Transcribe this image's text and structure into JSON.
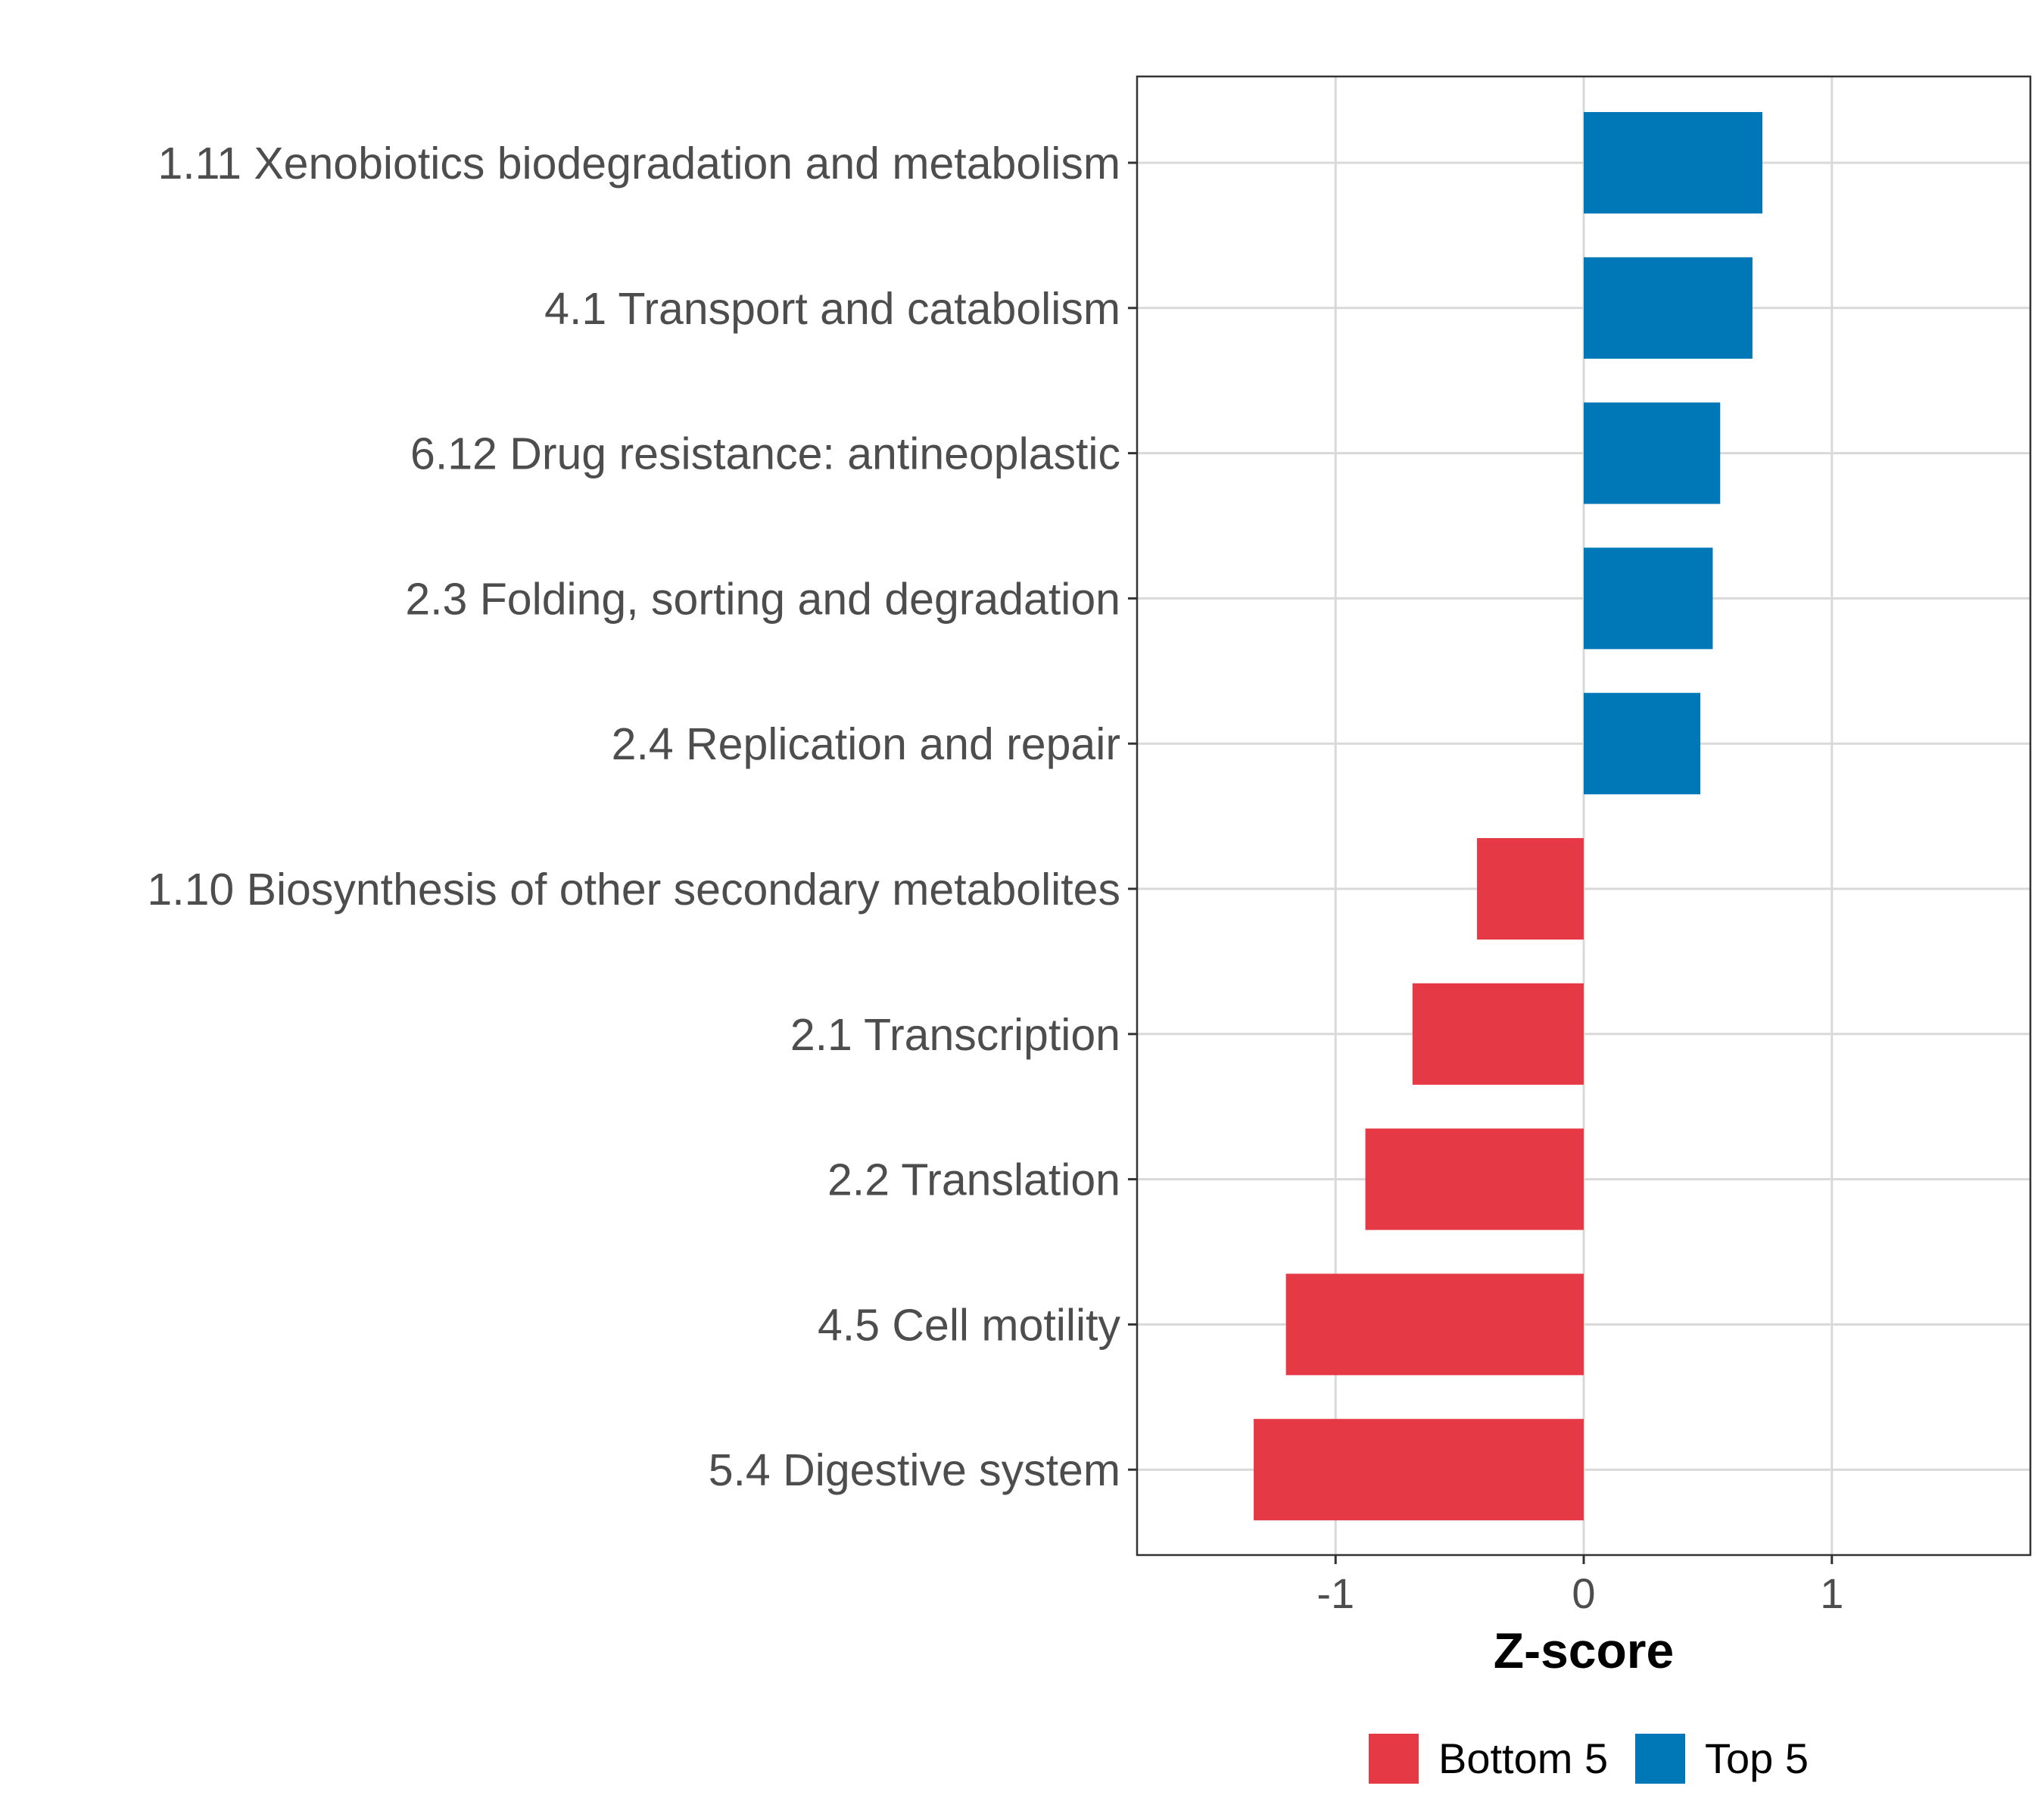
{
  "chart_data": {
    "type": "bar",
    "orientation": "horizontal",
    "categories": [
      "1.11 Xenobiotics biodegradation and metabolism",
      "4.1 Transport and catabolism",
      "6.12 Drug resistance: antineoplastic",
      "2.3 Folding, sorting and degradation",
      "2.4 Replication and repair",
      "1.10 Biosynthesis of other secondary metabolites",
      "2.1 Transcription",
      "2.2 Translation",
      "4.5 Cell motility",
      "5.4 Digestive system"
    ],
    "values": [
      0.72,
      0.68,
      0.55,
      0.52,
      0.47,
      -0.43,
      -0.69,
      -0.88,
      -1.2,
      -1.33
    ],
    "groups": [
      "Top 5",
      "Top 5",
      "Top 5",
      "Top 5",
      "Top 5",
      "Bottom 5",
      "Bottom 5",
      "Bottom 5",
      "Bottom 5",
      "Bottom 5"
    ],
    "xlabel": "Z-score",
    "ylabel": "",
    "xlim": [
      -1.8,
      1.8
    ],
    "xticks": [
      -1,
      0,
      1
    ],
    "xtick_labels": [
      "-1",
      "0",
      "1"
    ],
    "grid": true,
    "legend": {
      "position": "bottom",
      "entries": [
        {
          "label": "Bottom 5",
          "color": "#e63946"
        },
        {
          "label": "Top 5",
          "color": "#0077b6"
        }
      ]
    }
  }
}
